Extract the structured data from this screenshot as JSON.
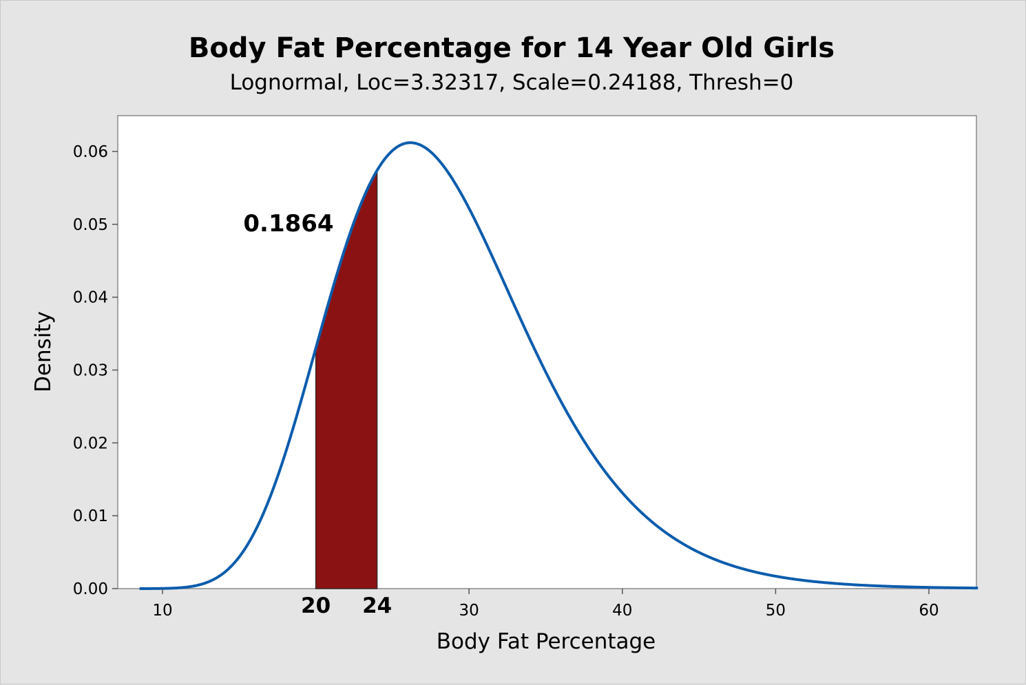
{
  "chart_data": {
    "type": "area",
    "title": "Body Fat Percentage for 14 Year Old Girls",
    "subtitle": "Lognormal, Loc=3.32317, Scale=0.24188, Thresh=0",
    "xlabel": "Body Fat Percentage",
    "ylabel": "Density",
    "distribution": {
      "name": "Lognormal",
      "loc": 3.32317,
      "scale": 0.24188,
      "thresh": 0
    },
    "xlim": [
      7.2,
      63.2
    ],
    "ylim": [
      0,
      0.065
    ],
    "x_ticks": [
      "10",
      "30",
      "40",
      "50",
      "60"
    ],
    "y_ticks": [
      "0.00",
      "0.01",
      "0.02",
      "0.03",
      "0.04",
      "0.05",
      "0.06"
    ],
    "shaded_region": {
      "from": 20,
      "to": 24,
      "probability_label": "0.1864",
      "bound_labels": [
        "20",
        "24"
      ]
    },
    "curve_range": [
      8.5,
      63.2
    ],
    "grid": false,
    "colors": {
      "curve": "#0b5cad",
      "shade": "#8b1212",
      "plot_bg": "#ffffff",
      "frame_bg": "#e5e5e5"
    }
  }
}
